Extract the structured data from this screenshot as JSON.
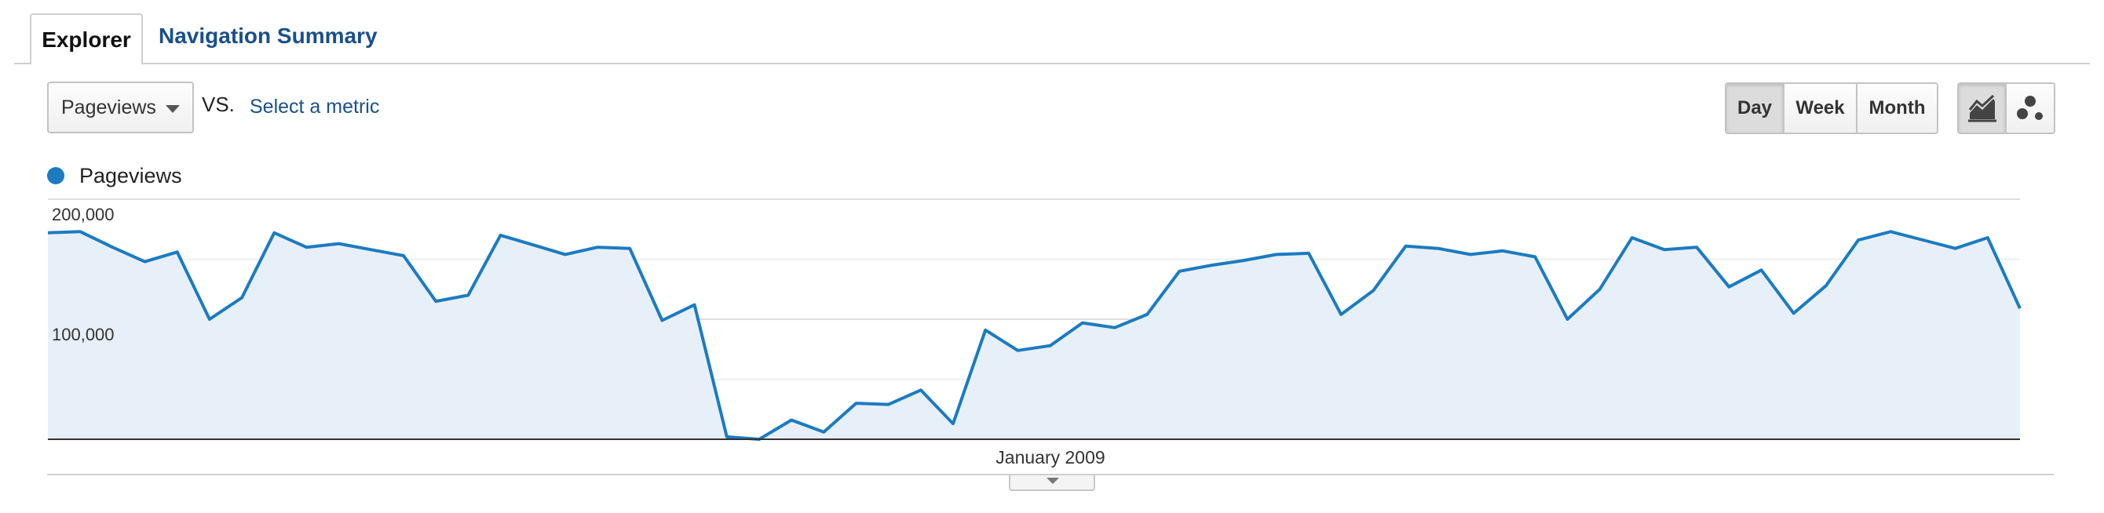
{
  "tabs": [
    {
      "label": "Explorer",
      "active": true
    },
    {
      "label": "Navigation Summary",
      "active": false
    }
  ],
  "toolbar": {
    "metric_selected": "Pageviews",
    "vs_label": "VS.",
    "select_metric": "Select a metric",
    "periods": [
      {
        "label": "Day",
        "active": true
      },
      {
        "label": "Week",
        "active": false
      },
      {
        "label": "Month",
        "active": false
      }
    ],
    "chart_modes": [
      {
        "icon": "line-chart-icon",
        "active": true
      },
      {
        "icon": "motion-chart-icon",
        "active": false
      }
    ]
  },
  "legend": {
    "label": "Pageviews",
    "color": "#1c7bc1"
  },
  "chart_data": {
    "type": "area",
    "title": "",
    "ylim": [
      0,
      200000
    ],
    "yticks": [
      {
        "value": 200000,
        "label": "200,000"
      },
      {
        "value": 100000,
        "label": "100,000"
      }
    ],
    "gridlines": [
      50000,
      100000,
      150000,
      200000
    ],
    "xlabel": "January 2009",
    "series": [
      {
        "name": "Pageviews",
        "color": "#1c7bc1",
        "values": [
          172000,
          173000,
          160000,
          148000,
          156000,
          100000,
          118000,
          172000,
          160000,
          163000,
          158000,
          153000,
          115000,
          120000,
          170000,
          162000,
          154000,
          160000,
          159000,
          99000,
          112000,
          2000,
          0,
          16000,
          6000,
          30000,
          29000,
          41000,
          13000,
          91000,
          74000,
          78000,
          97000,
          93000,
          104000,
          140000,
          145000,
          149000,
          154000,
          155000,
          104000,
          124000,
          161000,
          159000,
          154000,
          157000,
          152000,
          100000,
          125000,
          168000,
          158000,
          160000,
          127000,
          141000,
          105000,
          128000,
          166000,
          173000,
          166000,
          159000,
          168000,
          109000
        ]
      }
    ]
  }
}
